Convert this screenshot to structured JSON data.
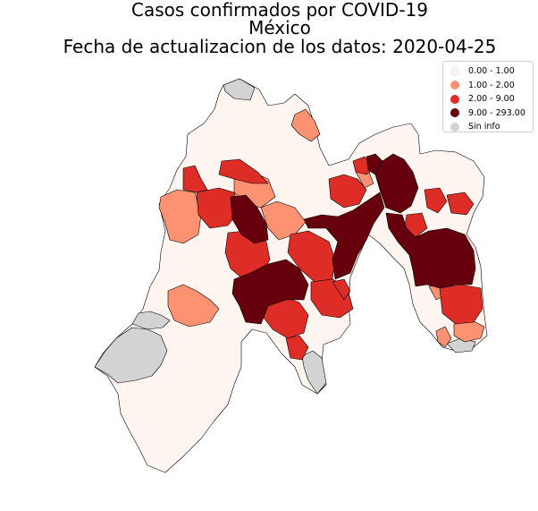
{
  "title": {
    "line1": "Casos confirmados por COVID-19",
    "line2": "México",
    "line3": "Fecha de actualizacion de los datos: 2020-04-25"
  },
  "legend": {
    "items": [
      {
        "label": "0.00 - 1.00",
        "color": "#fff5f0"
      },
      {
        "label": "1.00 - 2.00",
        "color": "#fc9272"
      },
      {
        "label": "2.00 - 9.00",
        "color": "#de2d26"
      },
      {
        "label": "9.00 - 293.00",
        "color": "#67000d"
      },
      {
        "label": "Sin info",
        "color": "#d3d3d3"
      }
    ]
  },
  "colors": {
    "class0": "#fff5f0",
    "class1": "#fc9272",
    "class2": "#de2d26",
    "class3": "#67000d",
    "nodata": "#d3d3d3",
    "border": "#000000"
  }
}
